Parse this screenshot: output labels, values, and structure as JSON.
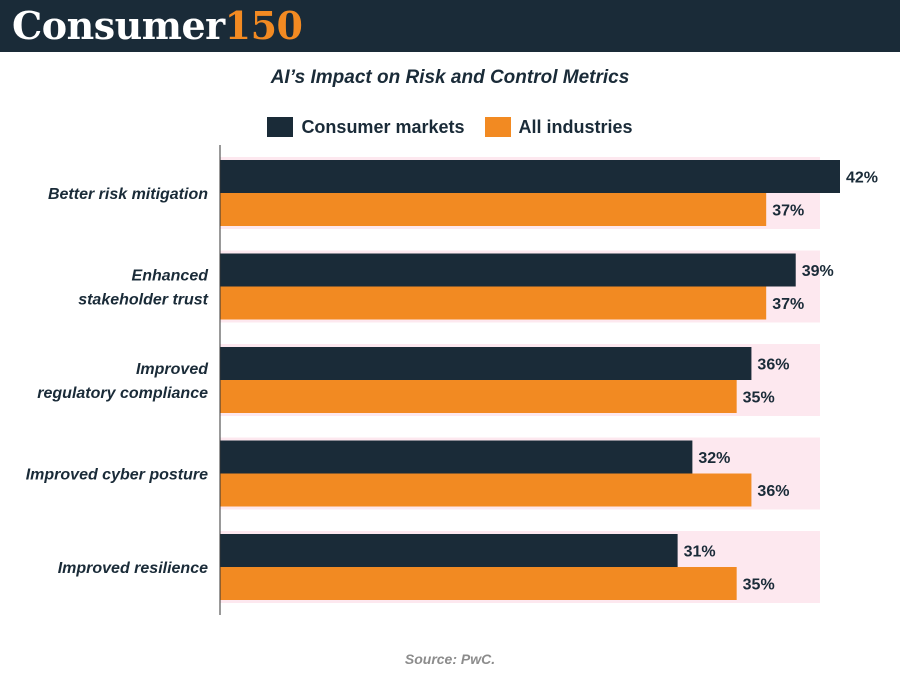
{
  "header": {
    "brand_white": "Consumer",
    "brand_orange": "150"
  },
  "colors": {
    "brand_dark": "#1a2b38",
    "brand_orange": "#f28a22",
    "band": "#fde8ef"
  },
  "chart_data": {
    "type": "bar",
    "orientation": "horizontal",
    "title": "AI’s Impact on Risk and Control Metrics",
    "categories": [
      "Better risk mitigation",
      "Enhanced stakeholder trust",
      "Improved regulatory compliance",
      "Improved cyber posture",
      "Improved resilience"
    ],
    "series": [
      {
        "name": "Consumer markets",
        "color": "#1a2b38",
        "values": [
          42,
          39,
          36,
          32,
          31
        ]
      },
      {
        "name": "All industries",
        "color": "#f28a22",
        "values": [
          37,
          37,
          35,
          36,
          35
        ]
      }
    ],
    "value_suffix": "%",
    "xlim": [
      0,
      45
    ],
    "grid": false,
    "legend_position": "top-center",
    "category_labels": [
      [
        "Better risk mitigation"
      ],
      [
        "Enhanced",
        "stakeholder trust"
      ],
      [
        "Improved",
        "regulatory compliance"
      ],
      [
        "Improved cyber posture"
      ],
      [
        "Improved resilience"
      ]
    ]
  },
  "source_text": "Source: PwC."
}
